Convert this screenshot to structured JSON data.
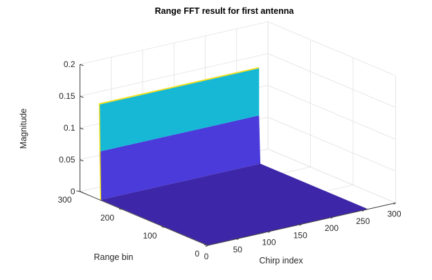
{
  "chart_data": {
    "type": "surface",
    "title": "Range FFT result for first antenna",
    "xlabel": "Chirp index",
    "ylabel": "Range bin",
    "zlabel": "Magnitude",
    "xlim": [
      0,
      300
    ],
    "ylim": [
      0,
      300
    ],
    "zlim": [
      0,
      0.2
    ],
    "x_ticks": [
      "0",
      "50",
      "100",
      "150",
      "200",
      "250",
      "300"
    ],
    "y_ticks": [
      "0",
      "100",
      "200",
      "300"
    ],
    "z_ticks": [
      "0",
      "0.05",
      "0.1",
      "0.15",
      "0.2"
    ],
    "grid": true,
    "chirp_range": [
      1,
      256
    ],
    "range_bin_range": [
      1,
      256
    ],
    "peak": {
      "range_bin": 256,
      "magnitude": 0.15
    },
    "baseline_magnitude": 0,
    "colormap": [
      "#3E26A8",
      "#4A3BDA",
      "#16B8D6",
      "#F5E226"
    ]
  }
}
